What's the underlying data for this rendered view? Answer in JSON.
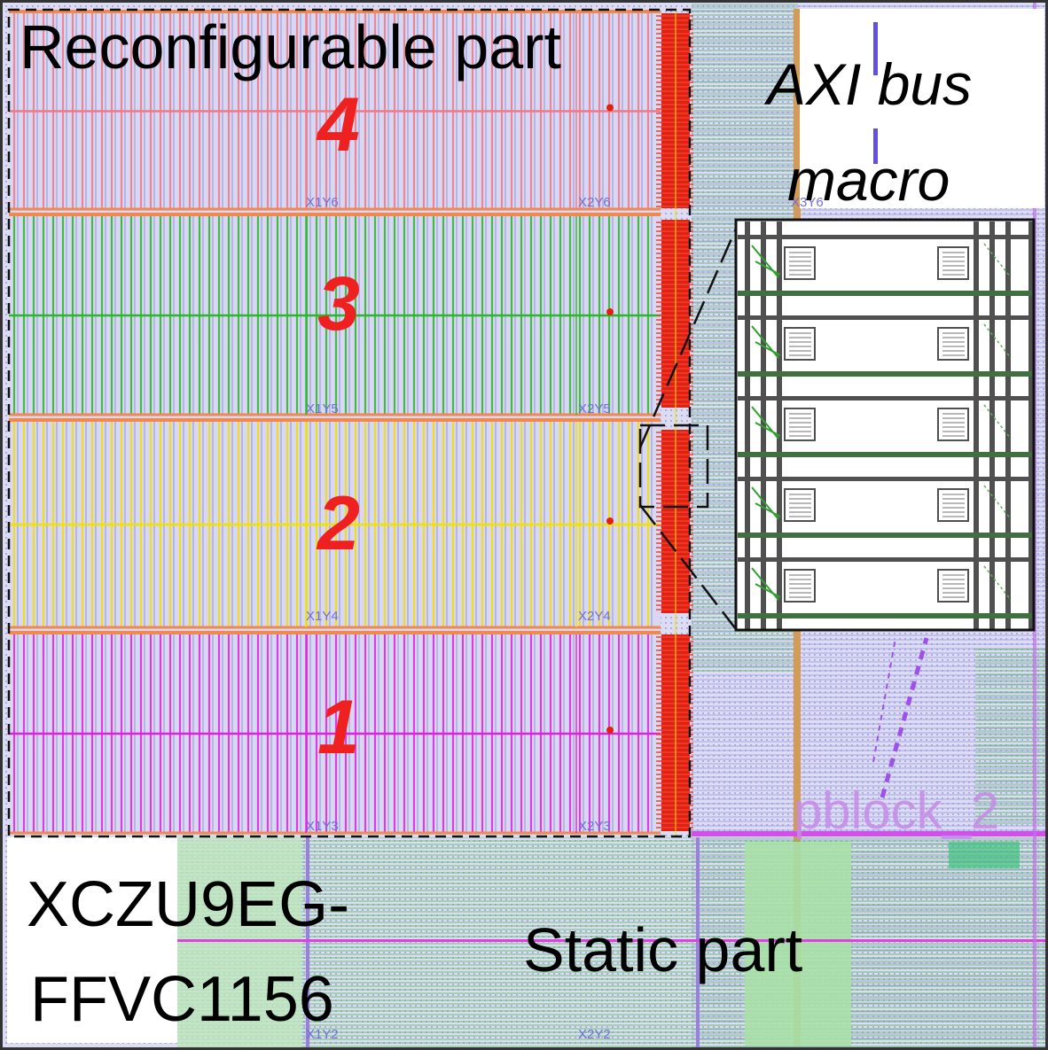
{
  "labels": {
    "reconfigurable_part": "Reconfigurable part",
    "axi_line1": "AXI bus",
    "axi_line2": "macro",
    "device_line1": "XCZU9EG-",
    "device_line2": "FFVC1156",
    "static_part": "Static part"
  },
  "regions": [
    {
      "number": "4",
      "color": "#f07888"
    },
    {
      "number": "3",
      "color": "#28b828"
    },
    {
      "number": "2",
      "color": "#f2e000"
    },
    {
      "number": "1",
      "color": "#e020e0"
    }
  ],
  "clock_regions": {
    "x1y6": "X1Y6",
    "x2y6": "X2Y6",
    "x3y6": "X3Y6",
    "x1y5": "X1Y5",
    "x2y5": "X2Y5",
    "x1y4": "X1Y4",
    "x2y4": "X2Y4",
    "x1y3": "X1Y3",
    "x2y3": "X2Y3",
    "x1y2": "X1Y2",
    "x2y2": "X2Y2"
  },
  "pblock_label": "pblock_2",
  "colors": {
    "background_grid": "#b4b4e8",
    "bus_macro": "#e02010",
    "region_number": "#ee2020",
    "static_green": "#5cc85c",
    "pblock": "#c070e8",
    "zoom_inset": "#404040"
  }
}
